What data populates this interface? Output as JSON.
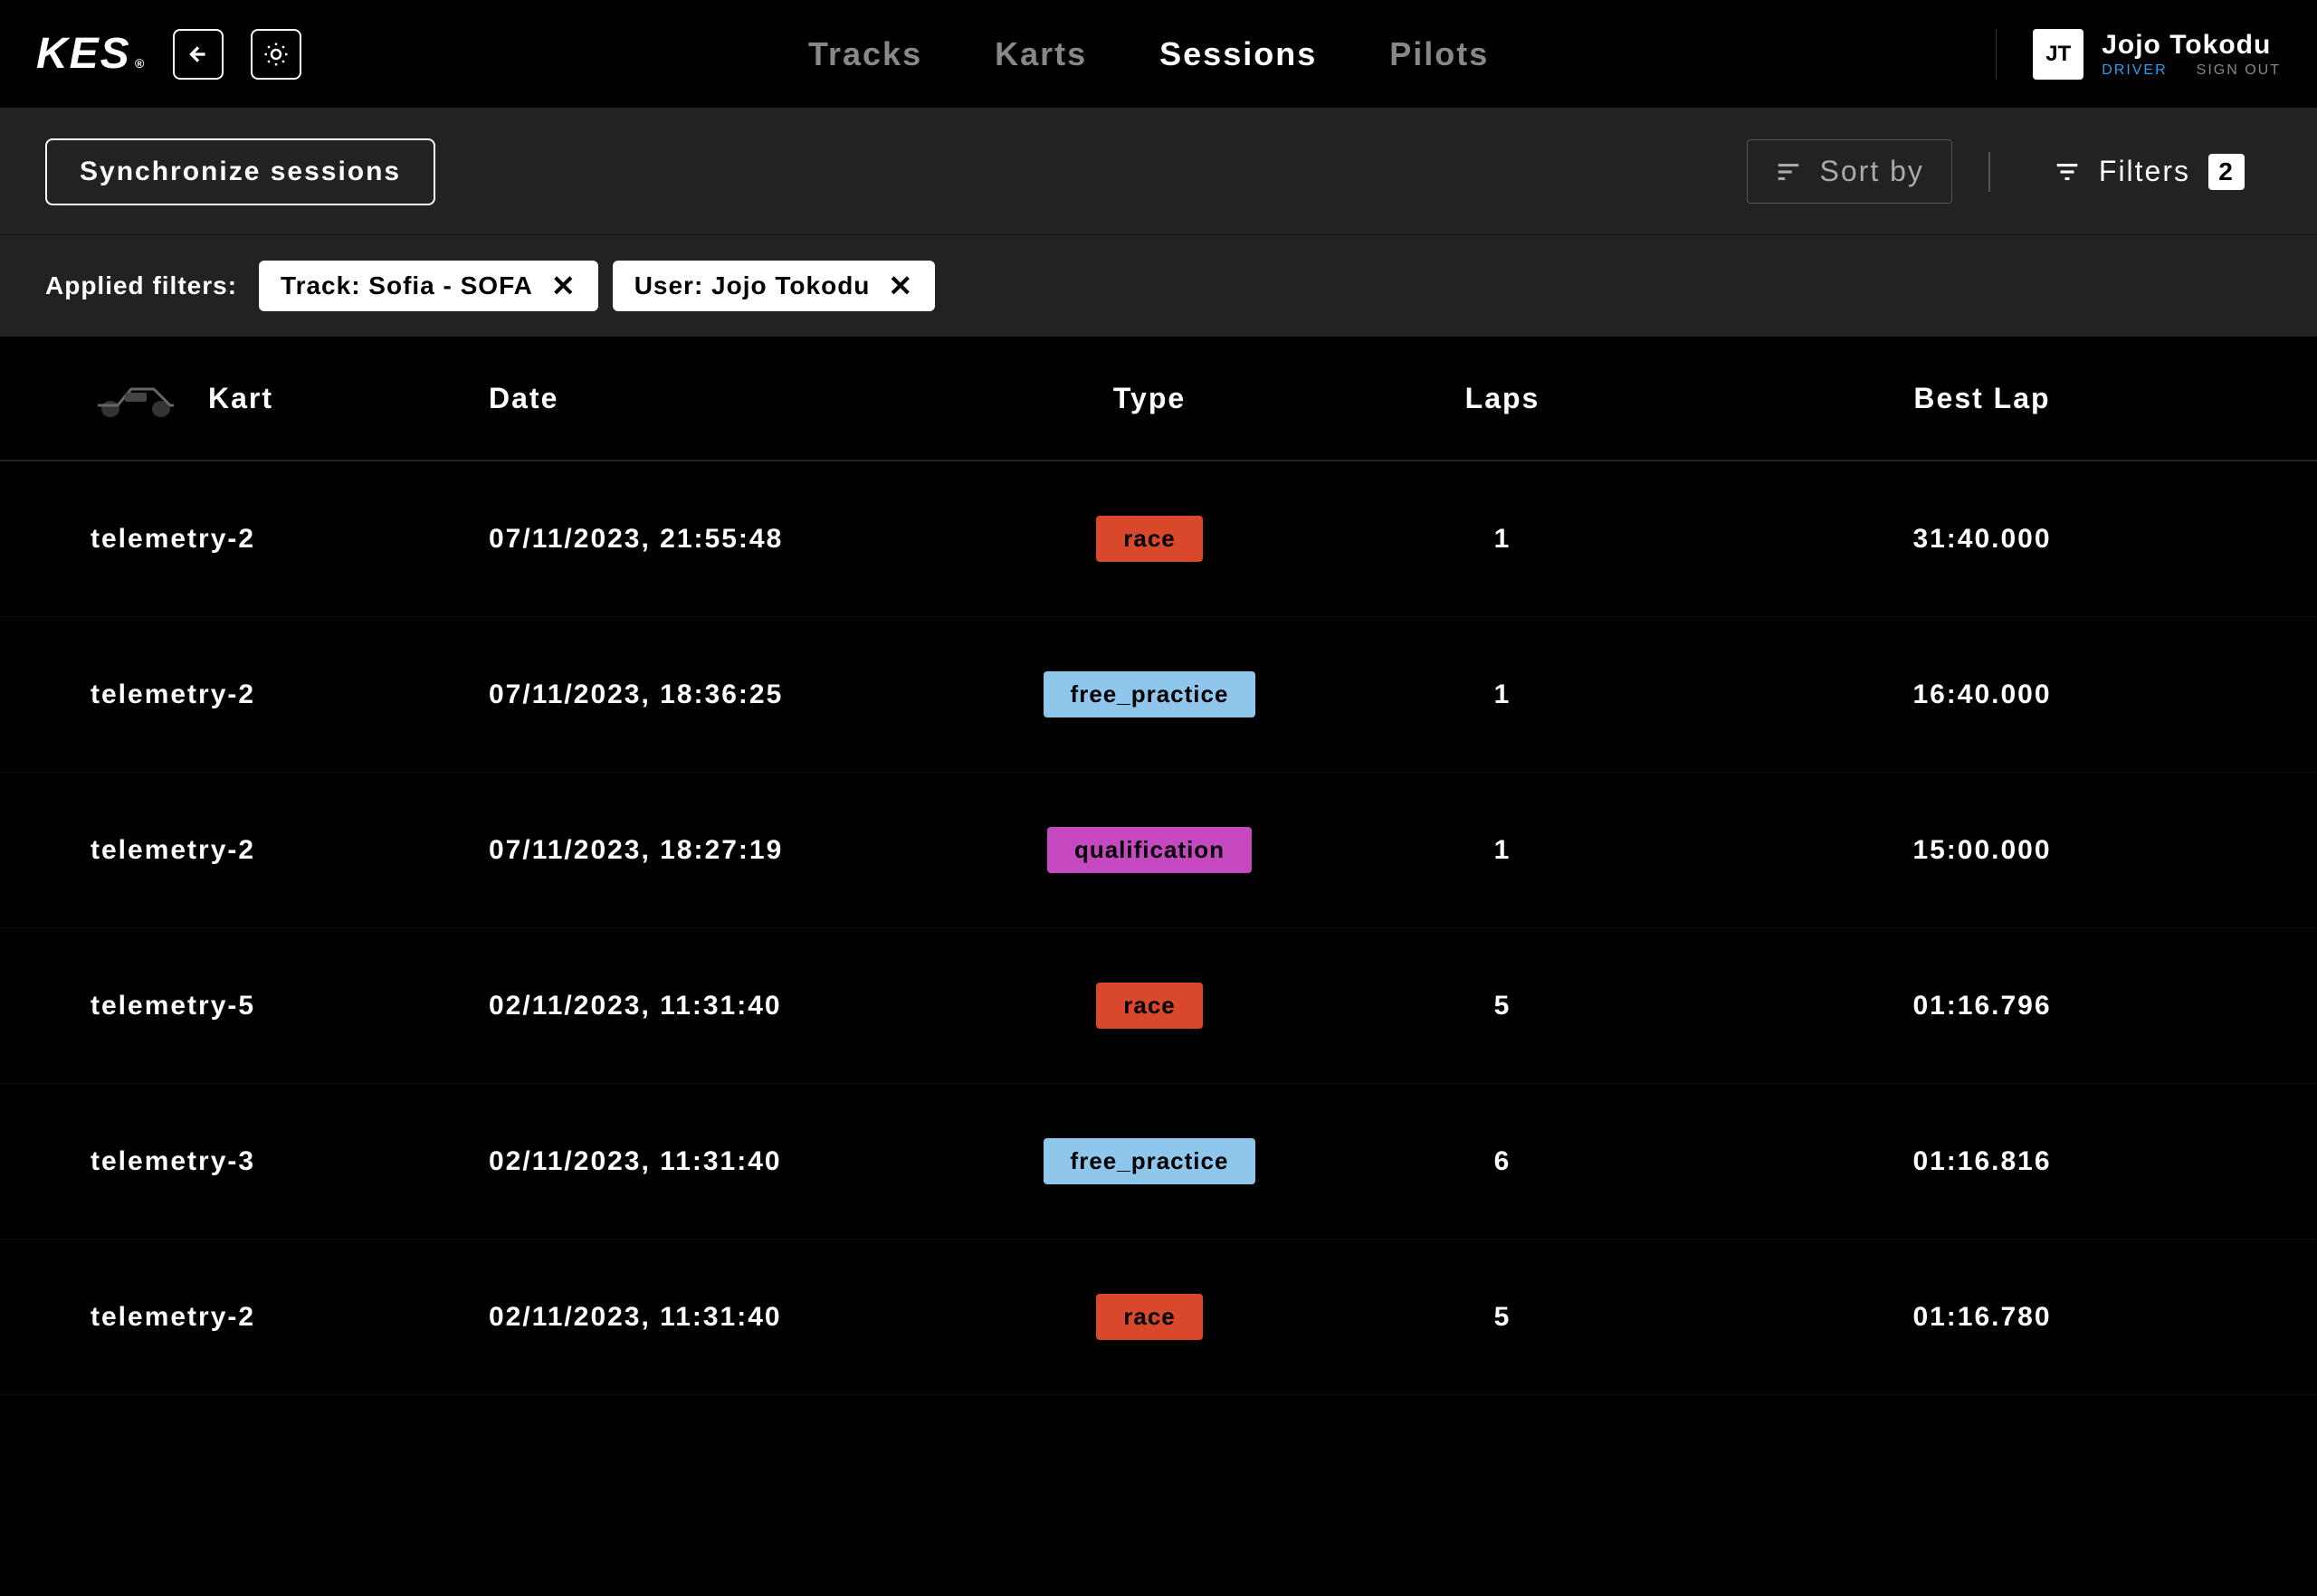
{
  "brand": {
    "logo_text": "KES",
    "logo_suffix": "®"
  },
  "nav": {
    "items": [
      {
        "label": "Tracks",
        "active": false
      },
      {
        "label": "Karts",
        "active": false
      },
      {
        "label": "Sessions",
        "active": true
      },
      {
        "label": "Pilots",
        "active": false
      }
    ]
  },
  "user": {
    "initials": "JT",
    "name": "Jojo Tokodu",
    "role": "DRIVER",
    "sign_out_label": "SIGN OUT"
  },
  "toolbar": {
    "sync_label": "Synchronize sessions",
    "sort_label": "Sort by",
    "filters_label": "Filters",
    "filters_count": "2"
  },
  "applied_filters": {
    "label": "Applied filters:",
    "chips": [
      {
        "text": "Track: Sofia - SOFA"
      },
      {
        "text": "User: Jojo Tokodu"
      }
    ]
  },
  "table": {
    "columns": {
      "kart": "Kart",
      "date": "Date",
      "type": "Type",
      "laps": "Laps",
      "best_lap": "Best Lap"
    },
    "type_colors": {
      "race": "#d9482b",
      "free_practice": "#8ec6ec",
      "qualification": "#c648c0"
    },
    "rows": [
      {
        "kart": "telemetry-2",
        "date": "07/11/2023, 21:55:48",
        "type": "race",
        "laps": "1",
        "best_lap": "31:40.000"
      },
      {
        "kart": "telemetry-2",
        "date": "07/11/2023, 18:36:25",
        "type": "free_practice",
        "laps": "1",
        "best_lap": "16:40.000"
      },
      {
        "kart": "telemetry-2",
        "date": "07/11/2023, 18:27:19",
        "type": "qualification",
        "laps": "1",
        "best_lap": "15:00.000"
      },
      {
        "kart": "telemetry-5",
        "date": "02/11/2023, 11:31:40",
        "type": "race",
        "laps": "5",
        "best_lap": "01:16.796"
      },
      {
        "kart": "telemetry-3",
        "date": "02/11/2023, 11:31:40",
        "type": "free_practice",
        "laps": "6",
        "best_lap": "01:16.816"
      },
      {
        "kart": "telemetry-2",
        "date": "02/11/2023, 11:31:40",
        "type": "race",
        "laps": "5",
        "best_lap": "01:16.780"
      }
    ]
  },
  "colors": {
    "background": "#000000",
    "panel": "#222222",
    "text_primary": "#ffffff",
    "text_secondary": "#888888",
    "accent_blue": "#2aa0f0"
  }
}
